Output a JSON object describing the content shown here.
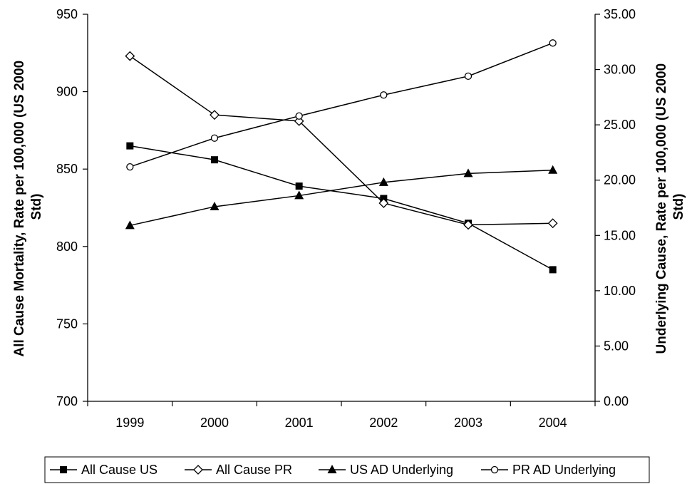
{
  "chart_data": {
    "type": "line",
    "categories": [
      "1999",
      "2000",
      "2001",
      "2002",
      "2003",
      "2004"
    ],
    "left_axis": {
      "label_line1": "All Cause Mortality, Rate per 100,000 (US 2000",
      "label_line2": "Std)",
      "ylim": [
        700,
        950
      ],
      "ticks": [
        "700",
        "750",
        "800",
        "850",
        "900",
        "950"
      ]
    },
    "right_axis": {
      "label_line1": "Underlying Cause, Rate per 100,000 (US 2000",
      "label_line2": "Std)",
      "ylim": [
        0,
        35
      ],
      "ticks": [
        "0.00",
        "5.00",
        "10.00",
        "15.00",
        "20.00",
        "25.00",
        "30.00",
        "35.00"
      ]
    },
    "grid": false,
    "legend_position": "bottom",
    "series": [
      {
        "name": "All Cause US",
        "axis": "left",
        "marker": "square-filled",
        "values": [
          865,
          856,
          839,
          831,
          815,
          785
        ]
      },
      {
        "name": "All Cause PR",
        "axis": "left",
        "marker": "diamond-open",
        "values": [
          923,
          885,
          881,
          828,
          814,
          815
        ]
      },
      {
        "name": "US AD Underlying",
        "axis": "right",
        "marker": "triangle-filled",
        "values": [
          15.9,
          17.6,
          18.6,
          19.8,
          20.6,
          20.9
        ]
      },
      {
        "name": "PR AD Underlying",
        "axis": "right",
        "marker": "circle-open",
        "values": [
          21.2,
          23.8,
          25.8,
          27.7,
          29.4,
          32.4
        ]
      }
    ]
  }
}
